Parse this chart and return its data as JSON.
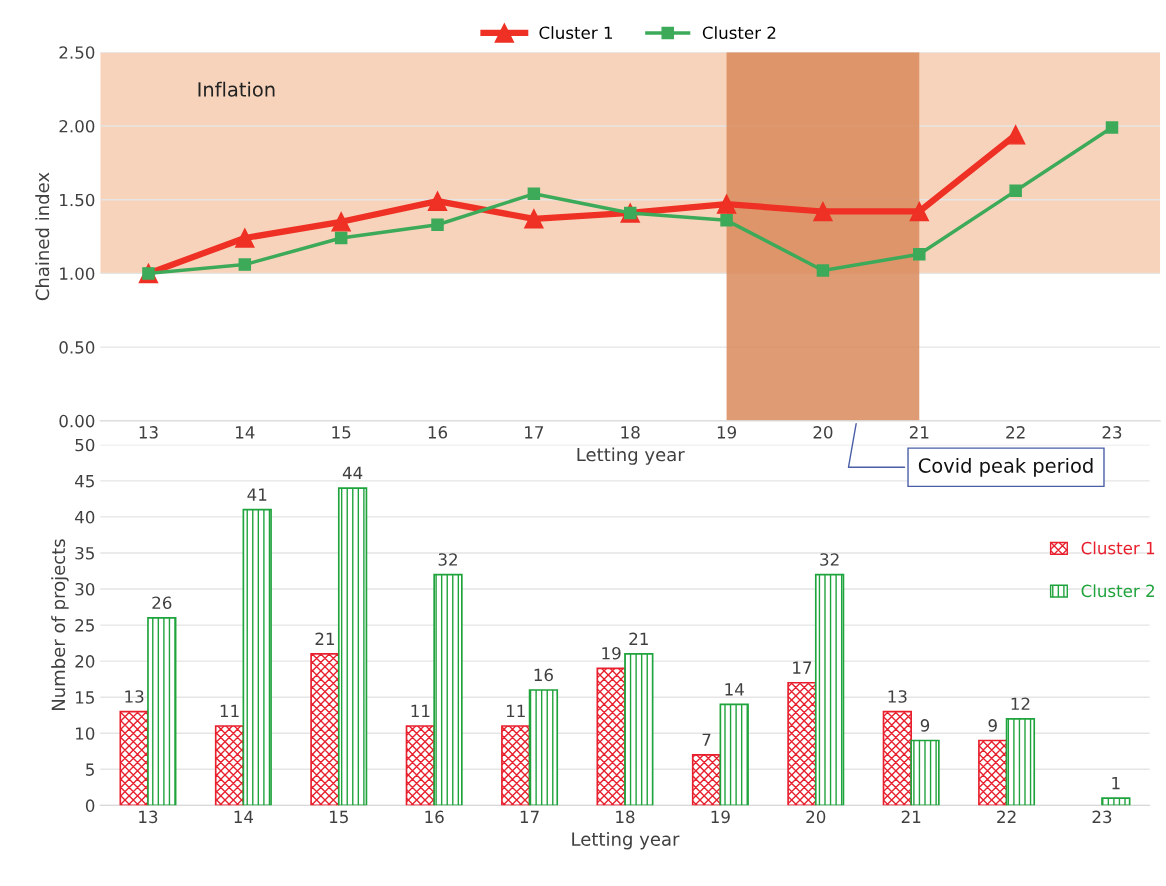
{
  "chart_data": [
    {
      "type": "line",
      "categories": [
        "13",
        "14",
        "15",
        "16",
        "17",
        "18",
        "19",
        "20",
        "21",
        "22",
        "23"
      ],
      "xlabel": "Letting year",
      "ylabel": "Chained index",
      "series": [
        {
          "name": "Cluster 1",
          "color": "#ee3124",
          "marker": "triangle",
          "values": [
            1.0,
            1.24,
            1.35,
            1.49,
            1.37,
            1.41,
            1.47,
            1.42,
            1.42,
            1.94,
            null
          ]
        },
        {
          "name": "Cluster 2",
          "color": "#3daa5a",
          "marker": "square",
          "values": [
            1.0,
            1.06,
            1.24,
            1.33,
            1.54,
            1.41,
            1.36,
            1.02,
            1.13,
            1.56,
            1.99
          ]
        }
      ],
      "ylim": [
        0,
        2.5
      ],
      "yticks": [
        {
          "value": 0,
          "label": "0.00"
        },
        {
          "value": 0.5,
          "label": "0.50"
        },
        {
          "value": 1,
          "label": "1.00"
        },
        {
          "value": 1.5,
          "label": "1.50"
        },
        {
          "value": 2,
          "label": "2.00"
        },
        {
          "value": 2.5,
          "label": "2.50"
        }
      ],
      "bands": [
        {
          "axis": "y",
          "from": 1,
          "to": 2.5,
          "label": "Inflation",
          "color": "#f8d3bb"
        },
        {
          "axis": "x",
          "from": "19",
          "to": "21",
          "label": "Covid peak period",
          "color": "#d98a5b"
        }
      ],
      "grid": "y",
      "legend": "top",
      "line_style": "solid"
    },
    {
      "type": "bar",
      "categories": [
        "13",
        "14",
        "15",
        "16",
        "17",
        "18",
        "19",
        "20",
        "21",
        "22",
        "23"
      ],
      "xlabel": "Letting year",
      "ylabel": "Number of projects",
      "series": [
        {
          "name": "Cluster 1",
          "color": "#e8202e",
          "values": [
            13,
            11,
            21,
            11,
            11,
            19,
            7,
            17,
            13,
            9,
            null
          ]
        },
        {
          "name": "Cluster 2",
          "color": "#1fa33c",
          "values": [
            26,
            41,
            44,
            32,
            16,
            21,
            14,
            32,
            9,
            12,
            1
          ]
        }
      ],
      "ylim": [
        0,
        50
      ],
      "yticks": [
        0,
        5,
        10,
        15,
        20,
        25,
        30,
        35,
        40,
        45,
        50
      ],
      "grid": "y",
      "legend": "right",
      "data_labels": true
    }
  ]
}
